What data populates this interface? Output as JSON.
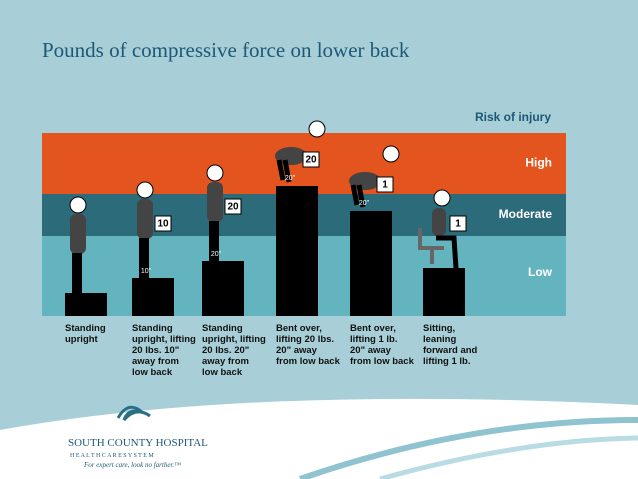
{
  "chart_data": {
    "type": "bar",
    "title": "Pounds of compressive force on lower back",
    "legend_title": "Risk of injury",
    "bands": [
      {
        "name": "Low",
        "range": [
          0,
          80
        ],
        "color": "#63b4bf"
      },
      {
        "name": "Moderate",
        "range": [
          80,
          122
        ],
        "color": "#2c6b79"
      },
      {
        "name": "High",
        "range": [
          122,
          183
        ],
        "color": "#e4541f"
      }
    ],
    "categories": [
      "Standing upright",
      "Standing upright, lifting 20 lbs. 10\" away from low back",
      "Standing upright, lifting 20 lbs. 20\" away from low back",
      "Bent over, lifting 20 lbs. 20\" away from low back",
      "Bent over, lifting 1 lb. 20\" away from low back",
      "Sitting, leaning forward and lifting 1 lb."
    ],
    "values": [
      23,
      38,
      55,
      130,
      105,
      48
    ],
    "load_labels": [
      null,
      "10",
      "20",
      "20",
      "1",
      "1"
    ],
    "distance_labels": [
      null,
      "10\"",
      "20\"",
      "20\"",
      "20\"",
      null
    ],
    "color": "#000000",
    "ylim": [
      0,
      183
    ]
  },
  "footer": {
    "name": "SOUTH COUNTY HOSPITAL",
    "subtitle": "H E A L T H C A R E   S Y S T E M",
    "tagline": "For expert care, look no farther.™"
  }
}
